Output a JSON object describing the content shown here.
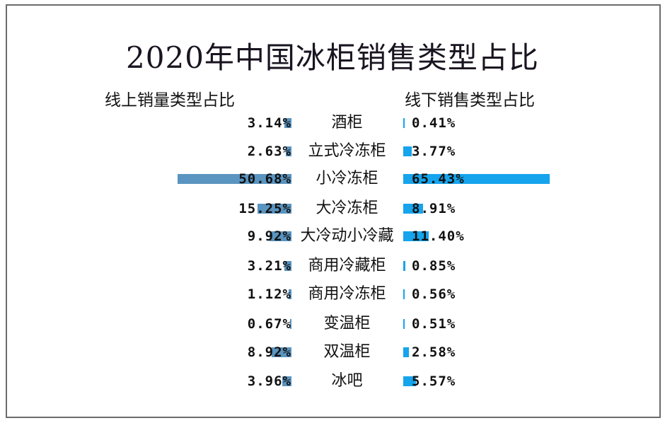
{
  "title": "2020年中国冰柜销售类型占比",
  "left_heading": "线上销量类型占比",
  "right_heading": "线下销售类型占比",
  "colors": {
    "online": "#5a94c0",
    "offline": "#16a4ec"
  },
  "rows": [
    {
      "category": "酒柜",
      "online": "3.14%",
      "offline": "0.41%"
    },
    {
      "category": "立式冷冻柜",
      "online": "2.63%",
      "offline": "3.77%"
    },
    {
      "category": "小冷冻柜",
      "online": "50.68%",
      "offline": "65.43%"
    },
    {
      "category": "大冷冻柜",
      "online": "15.25%",
      "offline": "8.91%"
    },
    {
      "category": "大冷动小冷藏",
      "online": "9.92%",
      "offline": "11.40%"
    },
    {
      "category": "商用冷藏柜",
      "online": "3.21%",
      "offline": "0.85%"
    },
    {
      "category": "商用冷冻柜",
      "online": "1.12%",
      "offline": "0.56%"
    },
    {
      "category": "变温柜",
      "online": "0.67%",
      "offline": "0.51%"
    },
    {
      "category": "双温柜",
      "online": "8.92%",
      "offline": "2.58%"
    },
    {
      "category": "冰吧",
      "online": "3.96%",
      "offline": "5.57%"
    }
  ],
  "chart_data": {
    "type": "bar",
    "orientation": "horizontal-butterfly",
    "title": "2020年中国冰柜销售类型占比",
    "categories": [
      "酒柜",
      "立式冷冻柜",
      "小冷冻柜",
      "大冷冻柜",
      "大冷动小冷藏",
      "商用冷藏柜",
      "商用冷冻柜",
      "变温柜",
      "双温柜",
      "冰吧"
    ],
    "series": [
      {
        "name": "线上销量类型占比",
        "values": [
          3.14,
          2.63,
          50.68,
          15.25,
          9.92,
          3.21,
          1.12,
          0.67,
          8.92,
          3.96
        ],
        "color": "#5a94c0",
        "side": "left"
      },
      {
        "name": "线下销售类型占比",
        "values": [
          0.41,
          3.77,
          65.43,
          8.91,
          11.4,
          0.85,
          0.56,
          0.51,
          2.58,
          5.57
        ],
        "color": "#16a4ec",
        "side": "right"
      }
    ],
    "unit": "%",
    "xlabel": "",
    "ylabel": "",
    "grid": false,
    "legend": "none (column headings used)"
  }
}
